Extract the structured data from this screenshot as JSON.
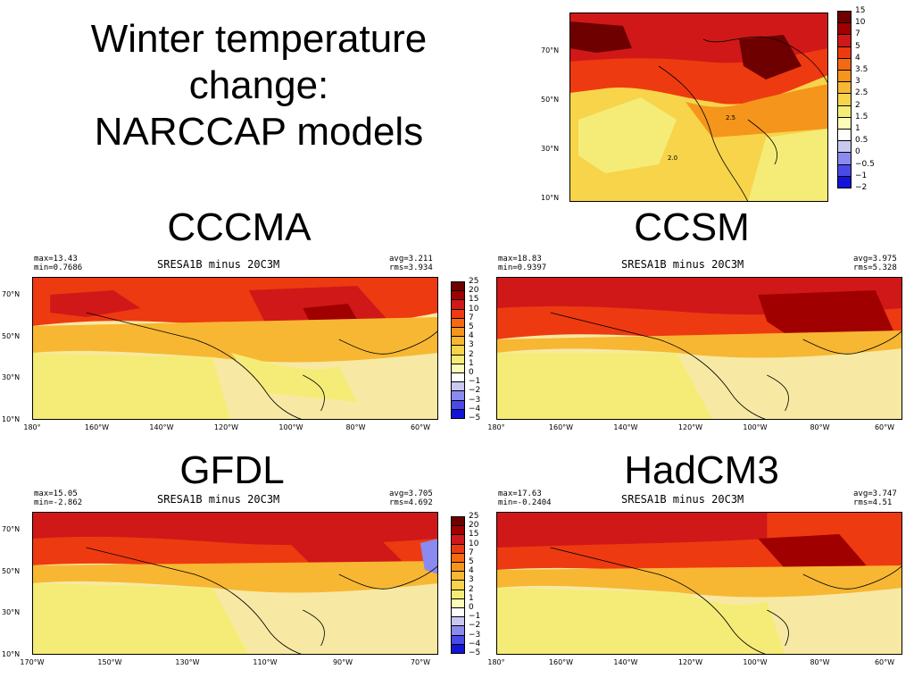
{
  "title": {
    "line1": "Winter temperature",
    "line2": "change:",
    "line3": "NARCCAP models"
  },
  "colors": {
    "scale": [
      "#6e0000",
      "#a00000",
      "#d01818",
      "#ee3a10",
      "#f56a10",
      "#f5951c",
      "#f7b733",
      "#f7d44a",
      "#f5ec78",
      "#fcfcb8",
      "#ffffff",
      "#c8c8f0",
      "#8a8af0",
      "#4a4ae8",
      "#1414d8"
    ],
    "ocean": "#f7e9a3"
  },
  "top_map": {
    "lat_ticks": [
      "70°N",
      "50°N",
      "30°N",
      "10°N"
    ],
    "colorbar": [
      "15",
      "10",
      "7",
      "5",
      "4",
      "3.5",
      "3",
      "2.5",
      "2",
      "1.5",
      "1",
      "0.5",
      "0",
      "−0.5",
      "−1",
      "−2"
    ],
    "contour_labels": [
      "2.0",
      "2.5"
    ]
  },
  "panels": [
    {
      "name": "CCCMA",
      "title": "SRESA1B minus 20C3M",
      "max": "max=13.43",
      "min": "min=0.7686",
      "avg": "avg=3.211",
      "rms": "rms=3.934",
      "lat_ticks": [
        "70°N",
        "50°N",
        "30°N",
        "10°N"
      ],
      "lon_ticks": [
        "180°",
        "160°W",
        "140°W",
        "120°W",
        "100°W",
        "80°W",
        "60°W"
      ]
    },
    {
      "name": "CCSM",
      "title": "SRESA1B minus 20C3M",
      "max": "max=18.83",
      "min": "min=0.9397",
      "avg": "avg=3.975",
      "rms": "rms=5.328",
      "lat_ticks": [],
      "lon_ticks": [
        "180°",
        "160°W",
        "140°W",
        "120°W",
        "100°W",
        "80°W",
        "60°W"
      ]
    },
    {
      "name": "GFDL",
      "title": "SRESA1B minus 20C3M",
      "max": "max=15.05",
      "min": "min=-2.862",
      "avg": "avg=3.705",
      "rms": "rms=4.692",
      "lat_ticks": [
        "70°N",
        "50°N",
        "30°N",
        "10°N"
      ],
      "lon_ticks": [
        "170°W",
        "150°W",
        "130°W",
        "110°W",
        "90°W",
        "70°W"
      ]
    },
    {
      "name": "HadCM3",
      "title": "SRESA1B minus 20C3M",
      "max": "max=17.63",
      "min": "min=-0.2404",
      "avg": "avg=3.747",
      "rms": "rms=4.51",
      "lat_ticks": [],
      "lon_ticks": [
        "180°",
        "160°W",
        "140°W",
        "120°W",
        "100°W",
        "80°W",
        "60°W"
      ]
    }
  ],
  "panel_colorbar": [
    "25",
    "20",
    "15",
    "10",
    "7",
    "5",
    "4",
    "3",
    "2",
    "1",
    "0",
    "−1",
    "−2",
    "−3",
    "−4",
    "−5"
  ]
}
